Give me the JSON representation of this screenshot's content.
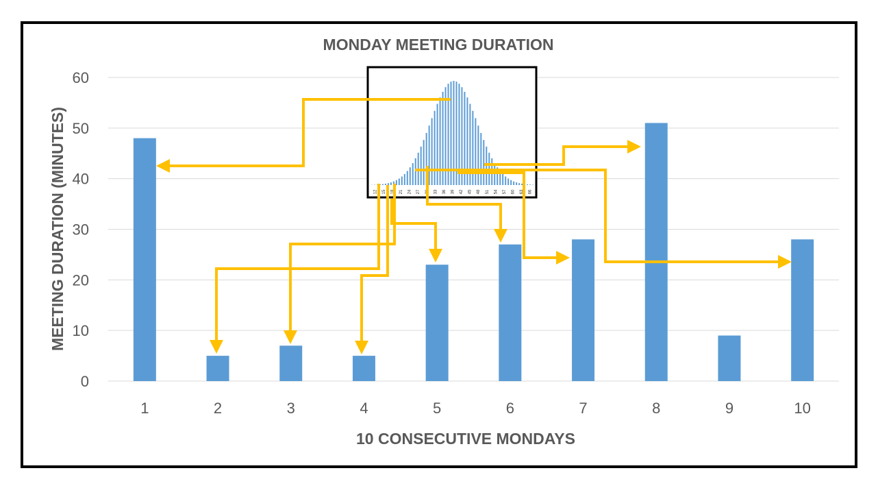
{
  "chart_data": {
    "type": "bar",
    "title": "MONDAY MEETING DURATION",
    "xlabel": "10 CONSECUTIVE MONDAYS",
    "ylabel": "MEETING DURATION (MINUTES)",
    "categories": [
      "1",
      "2",
      "3",
      "4",
      "5",
      "6",
      "7",
      "8",
      "9",
      "10"
    ],
    "values": [
      48,
      5,
      7,
      5,
      23,
      27,
      28,
      51,
      9,
      28
    ],
    "ylim": [
      0,
      60
    ],
    "yticks": [
      "0",
      "10",
      "20",
      "30",
      "40",
      "50",
      "60"
    ],
    "grid": true,
    "colors": {
      "bar": "#5b9bd5",
      "arrow": "#ffc000",
      "text": "#595959",
      "grid": "#d9d9d9"
    },
    "inset": {
      "type": "bar",
      "tick_labels": [
        "12",
        "15",
        "18",
        "21",
        "24",
        "27",
        "30",
        "33",
        "36",
        "39",
        "42",
        "45",
        "48",
        "51",
        "54",
        "57",
        "60",
        "63",
        "66"
      ]
    }
  }
}
